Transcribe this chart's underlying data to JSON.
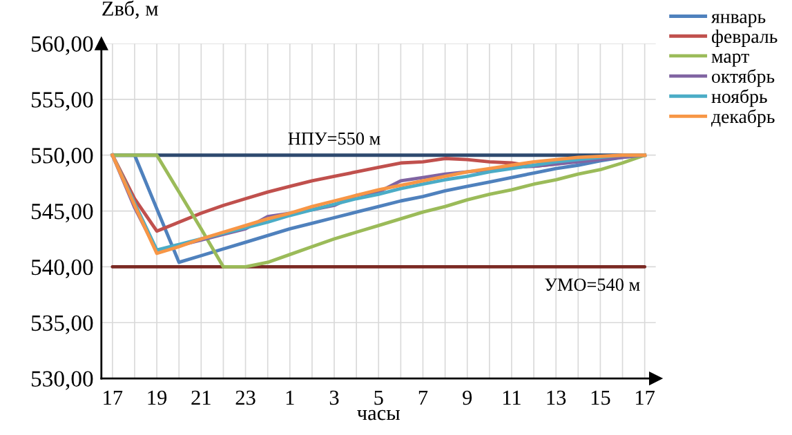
{
  "chart_data": {
    "type": "line",
    "ylabel": "Zвб, м",
    "xlabel": "часы",
    "categories": [
      "17",
      null,
      "19",
      null,
      "21",
      null,
      "23",
      null,
      "1",
      null,
      "3",
      null,
      "5",
      null,
      "7",
      null,
      "9",
      null,
      "11",
      null,
      "13",
      null,
      "15",
      null,
      "17"
    ],
    "ylim": [
      530,
      560
    ],
    "yticks": [
      {
        "value": 530,
        "label": "530,00"
      },
      {
        "value": 535,
        "label": "535,00"
      },
      {
        "value": 540,
        "label": "540,00"
      },
      {
        "value": 545,
        "label": "545,00"
      },
      {
        "value": 550,
        "label": "550,00"
      },
      {
        "value": 555,
        "label": "555,00"
      },
      {
        "value": 560,
        "label": "560,00"
      }
    ],
    "grid": true,
    "legend": "top right",
    "marker": "none",
    "line_style": "solid",
    "ref_lines": [
      {
        "axis": "y",
        "value": 550,
        "label": "НПУ=550 м",
        "color": "#2e4a6f"
      },
      {
        "axis": "y",
        "value": 540,
        "label": "УМО=540 м",
        "color": "#7b2a24"
      }
    ],
    "series": [
      {
        "name": "январь",
        "color": "#4f81bd",
        "values": [
          550,
          550,
          545.2,
          540.4,
          541.0,
          541.6,
          542.2,
          542.8,
          543.4,
          543.9,
          544.4,
          544.9,
          545.4,
          545.9,
          546.3,
          546.8,
          547.2,
          547.6,
          548.0,
          548.4,
          548.8,
          549.1,
          549.5,
          549.8,
          550
        ]
      },
      {
        "name": "февраль",
        "color": "#c0504d",
        "values": [
          550,
          546.1,
          543.2,
          544.0,
          544.8,
          545.5,
          546.1,
          546.7,
          547.2,
          547.7,
          548.1,
          548.5,
          548.9,
          549.3,
          549.4,
          549.7,
          549.6,
          549.4,
          549.3,
          549.0,
          549.2,
          549.5,
          549.8,
          550,
          550
        ]
      },
      {
        "name": "март",
        "color": "#9bbb59",
        "values": [
          550,
          550,
          550,
          546.7,
          543.4,
          540,
          540,
          540.4,
          541.1,
          541.8,
          542.5,
          543.1,
          543.7,
          544.3,
          544.9,
          545.4,
          546.0,
          546.5,
          546.9,
          547.4,
          547.8,
          548.3,
          548.7,
          549.3,
          550
        ]
      },
      {
        "name": "октябрь",
        "color": "#8064a2",
        "values": [
          550,
          545.3,
          541.4,
          541.9,
          542.4,
          542.9,
          543.4,
          544.5,
          544.8,
          545.1,
          545.5,
          546.4,
          546.7,
          547.7,
          548.0,
          548.3,
          548.5,
          548.7,
          548.9,
          549.0,
          549.2,
          549.4,
          549.6,
          549.8,
          550
        ]
      },
      {
        "name": "ноябрь",
        "color": "#4bacc6",
        "values": [
          550,
          545.7,
          541.5,
          542.0,
          542.5,
          543.0,
          543.5,
          544.0,
          544.6,
          545.1,
          545.6,
          546.1,
          546.5,
          547.0,
          547.4,
          547.8,
          548.1,
          548.5,
          548.8,
          549.1,
          549.4,
          549.6,
          549.8,
          550,
          550
        ]
      },
      {
        "name": "декабрь",
        "color": "#f79646",
        "values": [
          550,
          545.5,
          541.2,
          541.8,
          542.5,
          543.1,
          543.7,
          544.3,
          544.8,
          545.4,
          545.9,
          546.4,
          546.9,
          547.3,
          547.7,
          548.1,
          548.5,
          548.8,
          549.1,
          549.4,
          549.6,
          549.8,
          549.9,
          550,
          550
        ]
      }
    ]
  }
}
